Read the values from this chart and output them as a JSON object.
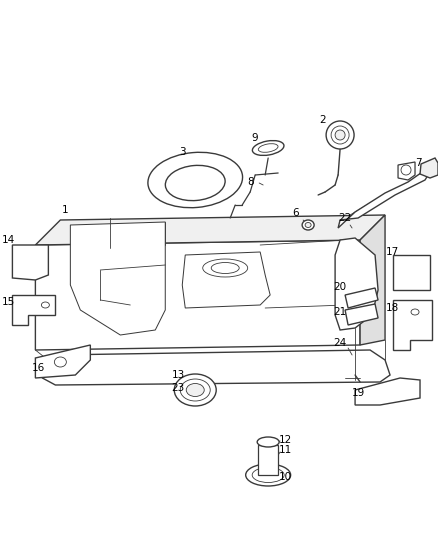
{
  "bg_color": "#ffffff",
  "figsize": [
    4.38,
    5.33
  ],
  "dpi": 100,
  "line_color": "#3a3a3a",
  "text_color": "#000000",
  "font_size": 7.5,
  "lw_main": 1.0,
  "lw_thin": 0.6
}
